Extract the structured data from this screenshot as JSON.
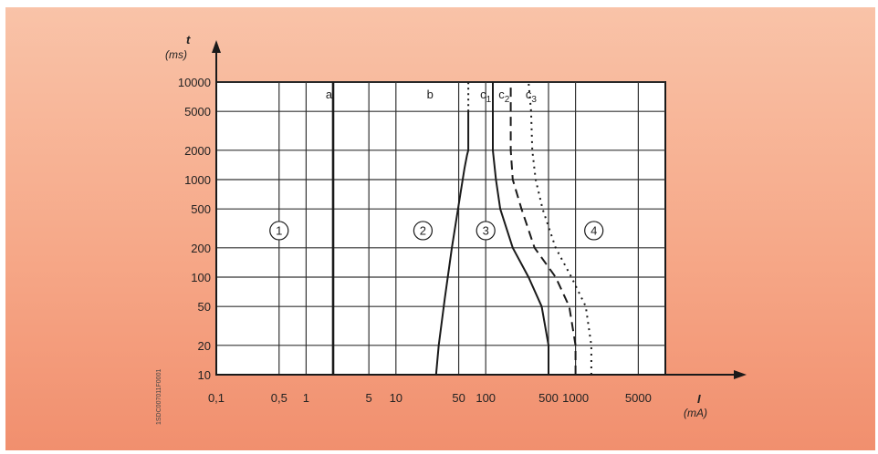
{
  "chart_data": {
    "type": "line",
    "title": "",
    "x_axis": {
      "label": "I",
      "unit": "(mA)",
      "scale": "log",
      "range": [
        0.1,
        10000
      ],
      "tick_labels": [
        {
          "value": 0.1,
          "label": "0,1"
        },
        {
          "value": 0.5,
          "label": "0,5"
        },
        {
          "value": 1,
          "label": "1"
        },
        {
          "value": 5,
          "label": "5"
        },
        {
          "value": 10,
          "label": "10"
        },
        {
          "value": 50,
          "label": "50"
        },
        {
          "value": 100,
          "label": "100"
        },
        {
          "value": 500,
          "label": "500"
        },
        {
          "value": 1000,
          "label": "1000"
        },
        {
          "value": 5000,
          "label": "5000"
        }
      ]
    },
    "y_axis": {
      "label": "t",
      "unit": "(ms)",
      "scale": "log",
      "range": [
        10,
        10000
      ],
      "tick_labels": [
        {
          "value": 10000,
          "label": "10000"
        },
        {
          "value": 5000,
          "label": "5000"
        },
        {
          "value": 2000,
          "label": "2000"
        },
        {
          "value": 1000,
          "label": "1000"
        },
        {
          "value": 500,
          "label": "500"
        },
        {
          "value": 200,
          "label": "200"
        },
        {
          "value": 100,
          "label": "100"
        },
        {
          "value": 50,
          "label": "50"
        },
        {
          "value": 20,
          "label": "20"
        },
        {
          "value": 10,
          "label": "10"
        }
      ]
    },
    "grid": true,
    "series": [
      {
        "name": "a",
        "style": "solid-thick",
        "points": [
          [
            2,
            10
          ],
          [
            2,
            10000
          ]
        ]
      },
      {
        "name": "b",
        "style": "solid",
        "points": [
          [
            28,
            10
          ],
          [
            30,
            20
          ],
          [
            35,
            60
          ],
          [
            42,
            200
          ],
          [
            52,
            700
          ],
          [
            58,
            1300
          ],
          [
            62,
            1800
          ],
          [
            64,
            2000
          ],
          [
            64,
            5000
          ]
        ]
      },
      {
        "name": "c1",
        "style": "solid",
        "points": [
          [
            500,
            10
          ],
          [
            500,
            20
          ],
          [
            420,
            50
          ],
          [
            300,
            100
          ],
          [
            200,
            200
          ],
          [
            145,
            500
          ],
          [
            130,
            1000
          ],
          [
            120,
            2000
          ],
          [
            120,
            10000
          ]
        ]
      },
      {
        "name": "c2",
        "style": "dashed",
        "points": [
          [
            1000,
            10
          ],
          [
            1000,
            20
          ],
          [
            850,
            50
          ],
          [
            600,
            100
          ],
          [
            350,
            200
          ],
          [
            250,
            500
          ],
          [
            200,
            1000
          ],
          [
            190,
            2000
          ],
          [
            190,
            10000
          ]
        ]
      },
      {
        "name": "c3",
        "style": "dotted",
        "points": [
          [
            1500,
            10
          ],
          [
            1500,
            20
          ],
          [
            1300,
            50
          ],
          [
            900,
            100
          ],
          [
            600,
            200
          ],
          [
            430,
            500
          ],
          [
            360,
            1000
          ],
          [
            330,
            2000
          ],
          [
            320,
            5000
          ],
          [
            300,
            10000
          ]
        ]
      }
    ],
    "zones": [
      {
        "label": "1",
        "x": 0.5,
        "y": 300
      },
      {
        "label": "2",
        "x": 20,
        "y": 300
      },
      {
        "label": "3",
        "x": 100,
        "y": 300
      },
      {
        "label": "4",
        "x": 1600,
        "y": 300
      }
    ],
    "curve_labels": [
      {
        "name": "a",
        "text": "a",
        "x": 1.8,
        "y": 10000
      },
      {
        "name": "b",
        "text": "b",
        "x": 24,
        "y": 10000
      },
      {
        "name": "c1",
        "text": "c",
        "sub": "1",
        "x": 100,
        "y": 10000
      },
      {
        "name": "c2",
        "text": "c",
        "sub": "2",
        "x": 160,
        "y": 10000
      },
      {
        "name": "c3",
        "text": "c",
        "sub": "3",
        "x": 320,
        "y": 10000
      }
    ]
  },
  "side_code": "1SDC007011F0001",
  "colors": {
    "background_top": "#f9c3a8",
    "background_bottom": "#f18f6e",
    "plot_area": "#ffffff",
    "line": "#1a1a1a"
  }
}
